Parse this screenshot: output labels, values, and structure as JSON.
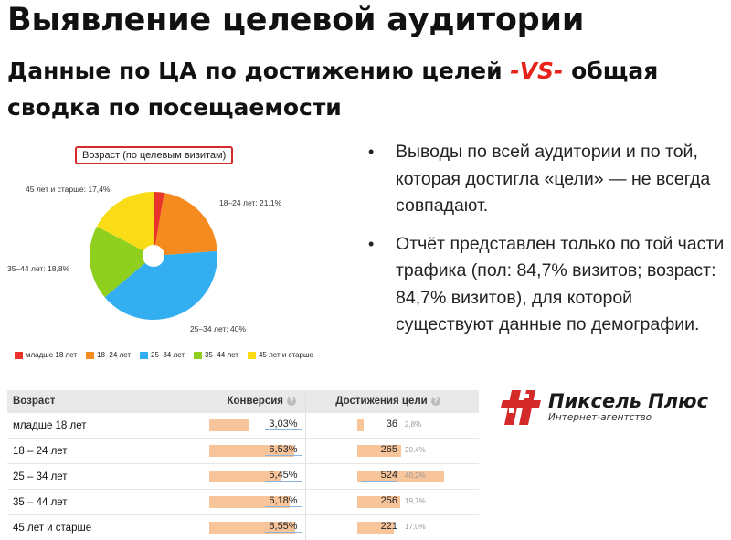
{
  "title": "Выявление целевой аудитории",
  "subtitle_part1": "Данные по ЦА по достижению целей ",
  "subtitle_vs": "-VS-",
  "subtitle_part2": " общая сводка по посещаемости",
  "chart_data": {
    "type": "pie",
    "title": "Возраст (по целевым визитам)",
    "slices": [
      {
        "label": "младше 18 лет",
        "value": 2.7,
        "color": "#e8342a"
      },
      {
        "label": "18–24 лет",
        "value": 21.1,
        "color": "#f58a1f"
      },
      {
        "label": "25–34 лет",
        "value": 40,
        "color": "#33aef0"
      },
      {
        "label": "35–44 лет",
        "value": 18.8,
        "color": "#8fcf1e"
      },
      {
        "label": "45 лет и старше",
        "value": 17.4,
        "color": "#f9dc16"
      }
    ],
    "slice_labels": {
      "s18_24": "18–24 лет: 21,1%",
      "s25_34": "25–34 лет: 40%",
      "s35_44": "35–44 лет: 18,8%",
      "s45": "45 лет и старше: 17,4%"
    },
    "legend": [
      "младше 18 лет",
      "18–24 лет",
      "25–34 лет",
      "35–44 лет",
      "45 лет и старше"
    ]
  },
  "bullets": [
    "Выводы по всей аудитории и по той, которая достигла «цели» — не всегда совпадают.",
    "Отчёт представлен только по той части трафика (пол: 84,7% визитов; возраст: 84,7% визитов), для которой существуют данные по демографии."
  ],
  "table": {
    "headers": {
      "age": "Возраст",
      "conversion": "Конверсия",
      "achievements": "Достижения цели"
    },
    "help_icon": "?",
    "rows": [
      {
        "age": "младше 18 лет",
        "conversion": "3,03%",
        "conv_value": 3.03,
        "count": "36",
        "pct": "2,8%",
        "pct_value": 2.8
      },
      {
        "age": "18 – 24 лет",
        "conversion": "6,53%",
        "conv_value": 6.53,
        "count": "265",
        "pct": "20,4%",
        "pct_value": 20.4
      },
      {
        "age": "25 – 34 лет",
        "conversion": "5,45%",
        "conv_value": 5.45,
        "count": "524",
        "pct": "40,2%",
        "pct_value": 40.2
      },
      {
        "age": "35 – 44 лет",
        "conversion": "6,18%",
        "conv_value": 6.18,
        "count": "256",
        "pct": "19,7%",
        "pct_value": 19.7
      },
      {
        "age": "45 лет и старше",
        "conversion": "6,55%",
        "conv_value": 6.55,
        "count": "221",
        "pct": "17,0%",
        "pct_value": 17.0
      }
    ]
  },
  "logo": {
    "name": "Пиксель Плюс",
    "tagline": "Интернет-агентство",
    "accent": "#d42a2a"
  }
}
